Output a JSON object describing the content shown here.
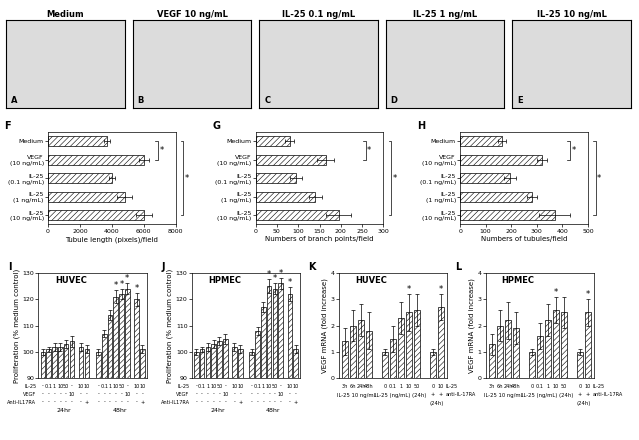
{
  "images": [
    {
      "panel": "A",
      "label": "Medium"
    },
    {
      "panel": "B",
      "label": "VEGF 10 ng/mL"
    },
    {
      "panel": "C",
      "label": "IL-25 0.1 ng/mL"
    },
    {
      "panel": "D",
      "label": "IL-25 1 ng/mL"
    },
    {
      "panel": "E",
      "label": "IL-25 10 ng/mL"
    }
  ],
  "chart_data": [
    {
      "panel": "F",
      "type": "bar",
      "orientation": "horizontal",
      "color": "#ffffff",
      "categories": [
        "Medium",
        "VEGF\n(10 ng/mL)",
        "IL-25\n(0.1 ng/mL)",
        "IL-25\n(1 ng/mL)",
        "IL-25\n(10 ng/mL)"
      ],
      "values": [
        3700,
        6000,
        4000,
        4800,
        6000
      ],
      "errors": [
        200,
        300,
        200,
        450,
        500
      ],
      "xlabel": "Tubule length (pixels)/field",
      "xlim": [
        0,
        8000
      ],
      "xticks": [
        0,
        2000,
        4000,
        6000,
        8000
      ],
      "significance": [
        {
          "from": 0,
          "to": 1,
          "label": "*"
        },
        {
          "from": 0,
          "to": 4,
          "label": "*"
        }
      ]
    },
    {
      "panel": "G",
      "type": "bar",
      "orientation": "horizontal",
      "color": "#ffffff",
      "categories": [
        "Medium",
        "VEGF\n(10 ng/mL)",
        "IL-25\n(0.1 ng/mL)",
        "IL-25\n(1 ng/mL)",
        "IL-25\n(10 ng/mL)"
      ],
      "values": [
        80,
        165,
        95,
        140,
        195
      ],
      "errors": [
        10,
        20,
        15,
        15,
        30
      ],
      "xlabel": "Numbers of branch points/field",
      "xlim": [
        0,
        300
      ],
      "xticks": [
        0,
        50,
        100,
        150,
        200,
        250,
        300
      ],
      "significance": [
        {
          "from": 0,
          "to": 1,
          "label": "*"
        },
        {
          "from": 0,
          "to": 4,
          "label": "*"
        }
      ]
    },
    {
      "panel": "H",
      "type": "bar",
      "orientation": "horizontal",
      "color": "#ffffff",
      "categories": [
        "Medium",
        "VEGF\n(10 ng/mL)",
        "IL-25\n(0.1 ng/mL)",
        "IL-25\n(1 ng/mL)",
        "IL-25\n(10 ng/mL)"
      ],
      "values": [
        165,
        320,
        195,
        280,
        370
      ],
      "errors": [
        15,
        20,
        25,
        20,
        60
      ],
      "xlabel": "Numbers of tubules/field",
      "xlim": [
        0,
        500
      ],
      "xticks": [
        0,
        100,
        200,
        300,
        400,
        500
      ],
      "significance": [
        {
          "from": 0,
          "to": 1,
          "label": "*"
        },
        {
          "from": 0,
          "to": 4,
          "label": "*"
        }
      ]
    },
    {
      "panel": "I",
      "type": "bar",
      "title": "HUVEC",
      "color": "#ffffff",
      "ylabel": "Proliferation (% medium control)",
      "ylim": [
        90,
        130
      ],
      "yticks": [
        90,
        100,
        110,
        120,
        130
      ],
      "condition_rows": [
        {
          "label": "IL-25",
          "cells": [
            "-",
            "0.1",
            "1",
            "10",
            "50",
            "-",
            "10",
            "10"
          ]
        },
        {
          "label": "VEGF",
          "cells": [
            "-",
            "-",
            "-",
            "-",
            "-",
            "10",
            "-",
            "-"
          ]
        },
        {
          "label": "Anti-IL17RA",
          "cells": [
            "-",
            "-",
            "-",
            "-",
            "-",
            "-",
            "-",
            "+"
          ]
        }
      ],
      "groups": [
        {
          "name": "24hr",
          "values": [
            100,
            101,
            102,
            102,
            103,
            104,
            102,
            101
          ],
          "errors": [
            1,
            1,
            1.5,
            1.5,
            1.5,
            2,
            1.5,
            1.5
          ],
          "stars": [
            null,
            null,
            null,
            null,
            null,
            null,
            null,
            null
          ]
        },
        {
          "name": "48hr",
          "values": [
            100,
            107,
            114,
            121,
            122,
            124,
            120,
            101
          ],
          "errors": [
            1,
            1.5,
            2,
            2.5,
            2,
            2,
            2.5,
            1.5
          ],
          "stars": [
            null,
            null,
            null,
            "*",
            "*",
            "*",
            "*",
            null
          ]
        }
      ]
    },
    {
      "panel": "J",
      "type": "bar",
      "title": "HPMEC",
      "color": "#ffffff",
      "ylabel": "Proliferation (% medium control)",
      "ylim": [
        90,
        130
      ],
      "yticks": [
        90,
        100,
        110,
        120,
        130
      ],
      "condition_rows": [
        {
          "label": "IL-25",
          "cells": [
            "-",
            "0.1",
            "1",
            "10",
            "50",
            "-",
            "10",
            "10"
          ]
        },
        {
          "label": "VEGF",
          "cells": [
            "-",
            "-",
            "-",
            "-",
            "-",
            "10",
            "-",
            "-"
          ]
        },
        {
          "label": "Anti-IL17RA",
          "cells": [
            "-",
            "-",
            "-",
            "-",
            "-",
            "-",
            "-",
            "+"
          ]
        }
      ],
      "groups": [
        {
          "name": "24hr",
          "values": [
            100,
            101,
            102,
            103,
            104,
            105,
            102,
            101
          ],
          "errors": [
            1,
            1,
            1.5,
            1.5,
            1.5,
            2,
            1.5,
            1.5
          ],
          "stars": [
            null,
            null,
            null,
            null,
            null,
            null,
            null,
            null
          ]
        },
        {
          "name": "48hr",
          "values": [
            100,
            108,
            117,
            125,
            124,
            126,
            122,
            101
          ],
          "errors": [
            1,
            1.5,
            2,
            2.5,
            2,
            2,
            2.5,
            1.5
          ],
          "stars": [
            null,
            null,
            null,
            "*",
            "*",
            "*",
            "*",
            null
          ]
        }
      ]
    },
    {
      "panel": "K",
      "type": "bar",
      "title": "HUVEC",
      "color": "#ffffff",
      "ylabel": "VEGF mRNA (fold increase)",
      "ylim": [
        0,
        4
      ],
      "yticks": [
        0,
        1,
        2,
        3,
        4
      ],
      "groups": [
        {
          "name": "IL-25 10 ng/mL",
          "rows": [
            {
              "cells": [
                "3h",
                "6h",
                "24h",
                "48h"
              ]
            }
          ],
          "values": [
            1.4,
            2.0,
            2.2,
            1.8
          ],
          "errors": [
            0.5,
            0.6,
            0.6,
            0.7
          ],
          "stars": [
            null,
            null,
            null,
            null
          ]
        },
        {
          "name": "IL-25 (ng/mL) (24h)",
          "rows": [
            {
              "cells": [
                "0",
                "0.1",
                "1",
                "10",
                "50"
              ]
            }
          ],
          "values": [
            1.0,
            1.5,
            2.3,
            2.5,
            2.6
          ],
          "errors": [
            0.1,
            0.5,
            0.6,
            0.7,
            0.6
          ],
          "stars": [
            null,
            null,
            null,
            "*",
            null
          ]
        },
        {
          "name": "(24h)",
          "rows": [
            {
              "cells": [
                "0",
                "10"
              ],
              "label": "IL-25"
            },
            {
              "cells": [
                "+",
                "+"
              ],
              "label": "anti-IL-17RA"
            }
          ],
          "values": [
            1.0,
            2.7
          ],
          "errors": [
            0.1,
            0.5
          ],
          "stars": [
            null,
            "*"
          ]
        }
      ]
    },
    {
      "panel": "L",
      "type": "bar",
      "title": "HPMEC",
      "color": "#ffffff",
      "ylabel": "VEGF mRNA (fold increase)",
      "ylim": [
        0,
        4
      ],
      "yticks": [
        0,
        1,
        2,
        3,
        4
      ],
      "groups": [
        {
          "name": "IL-25 10 ng/mL",
          "rows": [
            {
              "cells": [
                "3h",
                "6h",
                "24h",
                "48h"
              ]
            }
          ],
          "values": [
            1.3,
            2.0,
            2.2,
            1.9
          ],
          "errors": [
            0.4,
            0.6,
            0.7,
            0.6
          ],
          "stars": [
            null,
            null,
            null,
            null
          ]
        },
        {
          "name": "IL-25 (ng/mL) (24h)",
          "rows": [
            {
              "cells": [
                "0",
                "0.1",
                "1",
                "10",
                "50"
              ]
            }
          ],
          "values": [
            1.0,
            1.6,
            2.2,
            2.6,
            2.5
          ],
          "errors": [
            0.1,
            0.5,
            0.6,
            0.5,
            0.6
          ],
          "stars": [
            null,
            null,
            null,
            "*",
            null
          ]
        },
        {
          "name": "(24h)",
          "rows": [
            {
              "cells": [
                "0",
                "10"
              ],
              "label": "IL-25"
            },
            {
              "cells": [
                "+",
                "+"
              ],
              "label": "anti-IL-17RA"
            }
          ],
          "values": [
            1.0,
            2.5
          ],
          "errors": [
            0.1,
            0.5
          ],
          "stars": [
            null,
            "*"
          ]
        }
      ]
    }
  ]
}
